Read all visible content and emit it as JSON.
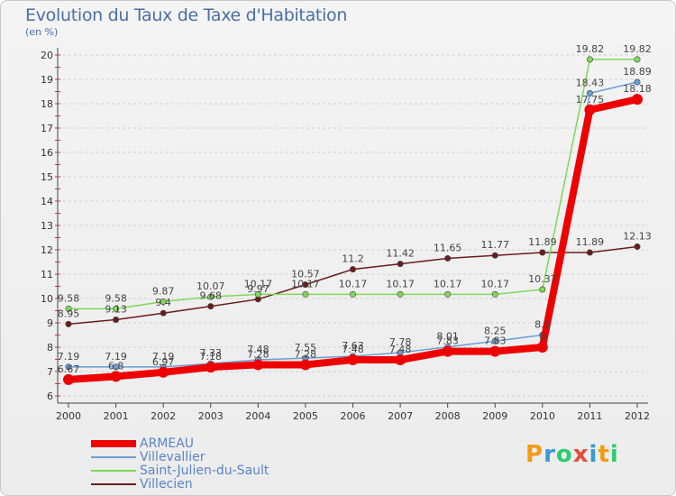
{
  "title": "Evolution du Taux de Taxe d'Habitation",
  "subtitle": "(en %)",
  "logo_text": "Proxiti",
  "chart_data": {
    "type": "line",
    "title": "Evolution du Taux de Taxe d'Habitation",
    "ylabel": "(en %)",
    "xlabel": "",
    "ylim": [
      6,
      20
    ],
    "yticks": [
      6,
      7,
      8,
      9,
      10,
      11,
      12,
      13,
      14,
      15,
      16,
      17,
      18,
      19,
      20
    ],
    "x": [
      "2000",
      "2001",
      "2002",
      "2003",
      "2004",
      "2005",
      "2006",
      "2007",
      "2008",
      "2009",
      "2010",
      "2011",
      "2012"
    ],
    "grid": "horizontal dashed",
    "legend_position": "bottom-left",
    "series": [
      {
        "name": "Villecien",
        "color": "#6b1c1c",
        "values": [
          8.95,
          9.13,
          9.4,
          9.68,
          9.97,
          10.57,
          11.2,
          11.42,
          11.65,
          11.77,
          11.89,
          11.89,
          12.13
        ]
      },
      {
        "name": "Saint-Julien-du-Sault",
        "color": "#7ed957",
        "values": [
          9.58,
          9.58,
          9.87,
          10.07,
          10.17,
          10.17,
          10.17,
          10.17,
          10.17,
          10.17,
          10.37,
          19.82,
          19.82
        ]
      },
      {
        "name": "Villevallier",
        "color": "#6a9ed8",
        "values": [
          7.19,
          7.19,
          7.19,
          7.33,
          7.48,
          7.55,
          7.63,
          7.78,
          8.01,
          8.25,
          8.5,
          18.43,
          18.89
        ]
      },
      {
        "name": "ARMEAU",
        "color": "#ee0000",
        "values": [
          6.67,
          6.8,
          6.97,
          7.18,
          7.28,
          7.28,
          7.48,
          7.48,
          7.83,
          7.83,
          8.0,
          17.75,
          18.18
        ]
      }
    ]
  }
}
